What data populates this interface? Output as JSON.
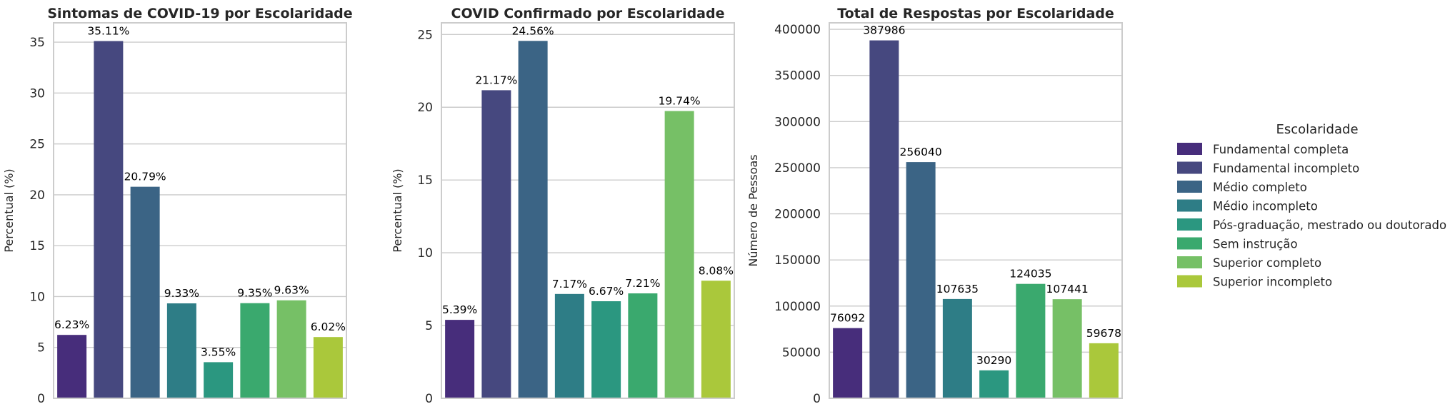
{
  "chart_data": [
    {
      "type": "bar",
      "title": "Sintomas de COVID-19 por Escolaridade",
      "xlabel": "",
      "ylabel": "Percentual (%)",
      "categories": [
        "Fundamental completa",
        "Fundamental incompleto",
        "Médio completo",
        "Médio incompleto",
        "Pós-graduação, mestrado ou doutorado",
        "Sem instrução",
        "Superior completo",
        "Superior incompleto"
      ],
      "values": [
        6.23,
        35.11,
        20.79,
        9.33,
        3.55,
        9.35,
        9.63,
        6.02
      ],
      "value_labels": [
        "6.23%",
        "35.11%",
        "20.79%",
        "9.33%",
        "3.55%",
        "9.35%",
        "9.63%",
        "6.02%"
      ],
      "ylim": [
        0,
        36.9
      ],
      "yticks": [
        0,
        5,
        10,
        15,
        20,
        25,
        30,
        35
      ],
      "ytick_labels": [
        "0",
        "5",
        "10",
        "15",
        "20",
        "25",
        "30",
        "35"
      ],
      "grid": true
    },
    {
      "type": "bar",
      "title": "COVID Confirmado por Escolaridade",
      "xlabel": "",
      "ylabel": "Percentual (%)",
      "categories": [
        "Fundamental completa",
        "Fundamental incompleto",
        "Médio completo",
        "Médio incompleto",
        "Pós-graduação, mestrado ou doutorado",
        "Sem instrução",
        "Superior completo",
        "Superior incompleto"
      ],
      "values": [
        5.39,
        21.17,
        24.56,
        7.17,
        6.67,
        7.21,
        19.74,
        8.08
      ],
      "value_labels": [
        "5.39%",
        "21.17%",
        "24.56%",
        "7.17%",
        "6.67%",
        "7.21%",
        "19.74%",
        "8.08%"
      ],
      "ylim": [
        0,
        25.8
      ],
      "yticks": [
        0,
        5,
        10,
        15,
        20,
        25
      ],
      "ytick_labels": [
        "0",
        "5",
        "10",
        "15",
        "20",
        "25"
      ],
      "grid": true
    },
    {
      "type": "bar",
      "title": "Total de Respostas por Escolaridade",
      "xlabel": "",
      "ylabel": "Número de Pessoas",
      "categories": [
        "Fundamental completa",
        "Fundamental incompleto",
        "Médio completo",
        "Médio incompleto",
        "Pós-graduação, mestrado ou doutorado",
        "Sem instrução",
        "Superior completo",
        "Superior incompleto"
      ],
      "values": [
        76092,
        387986,
        256040,
        107635,
        30290,
        124035,
        107441,
        59678
      ],
      "value_labels": [
        "76092",
        "387986",
        "256040",
        "107635",
        "30290",
        "124035",
        "107441",
        "59678"
      ],
      "ylim": [
        0,
        407000
      ],
      "yticks": [
        0,
        50000,
        100000,
        150000,
        200000,
        250000,
        300000,
        350000,
        400000
      ],
      "ytick_labels": [
        "0",
        "50000",
        "100000",
        "150000",
        "200000",
        "250000",
        "300000",
        "350000",
        "400000"
      ],
      "grid": true
    }
  ],
  "legend": {
    "title": "Escolaridade",
    "placement": "right",
    "items": [
      {
        "label": "Fundamental completa",
        "color": "#472d7b"
      },
      {
        "label": "Fundamental incompleto",
        "color": "#46487f"
      },
      {
        "label": "Médio completo",
        "color": "#3b6485"
      },
      {
        "label": "Médio incompleto",
        "color": "#2e7d86"
      },
      {
        "label": "Pós-graduação, mestrado ou doutorado",
        "color": "#2b9780"
      },
      {
        "label": "Sem instrução",
        "color": "#3aa96e"
      },
      {
        "label": "Superior completo",
        "color": "#76c066"
      },
      {
        "label": "Superior incompleto",
        "color": "#aac83b"
      }
    ]
  }
}
